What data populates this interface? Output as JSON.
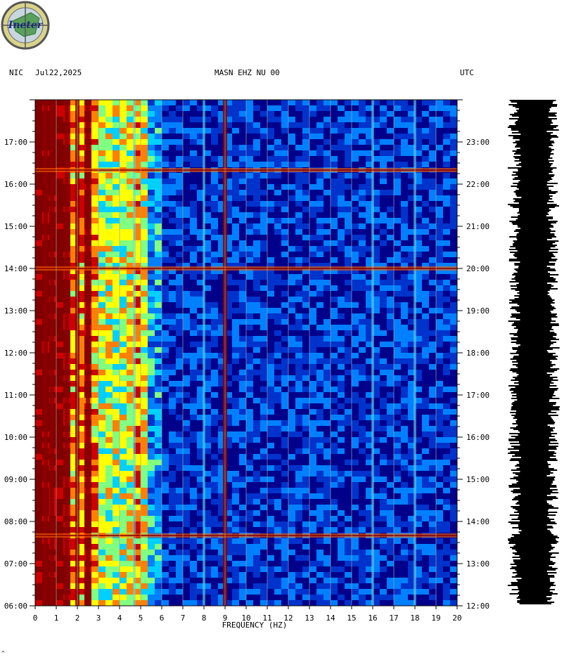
{
  "header": {
    "network": "NIC",
    "date": "Jul22,2025",
    "station": "MASN EHZ NU 00",
    "timezone": "UTC"
  },
  "logo": {
    "text": "Ineter"
  },
  "footer_mark": "^",
  "chart_data": {
    "type": "heatmap",
    "title": "MASN EHZ NU 00",
    "xlabel": "FREQUENCY (HZ)",
    "ylabel": "",
    "xlim": [
      0,
      20
    ],
    "x_ticks": [
      0,
      1,
      2,
      3,
      4,
      5,
      6,
      7,
      8,
      9,
      10,
      11,
      12,
      13,
      14,
      15,
      16,
      17,
      18,
      19,
      20
    ],
    "left_time_ticks": [
      "06:00",
      "07:00",
      "08:00",
      "09:00",
      "10:00",
      "11:00",
      "12:00",
      "13:00",
      "14:00",
      "15:00",
      "16:00",
      "17:00"
    ],
    "right_time_ticks": [
      "12:00",
      "13:00",
      "14:00",
      "15:00",
      "16:00",
      "17:00",
      "18:00",
      "19:00",
      "20:00",
      "21:00",
      "22:00",
      "23:00"
    ],
    "grid": true,
    "colormap": [
      "#00008b",
      "#0033cc",
      "#0080ff",
      "#00d0ff",
      "#80ff80",
      "#ffff00",
      "#ff8000",
      "#cc0000",
      "#800000"
    ],
    "persistent_bands_hz": [
      0.5,
      0.8,
      1.5,
      2.0,
      2.5,
      4.7,
      8.0,
      9.0,
      16.0,
      18.0
    ],
    "events_local_time": [
      "07:40",
      "14:00",
      "16:20"
    ]
  }
}
